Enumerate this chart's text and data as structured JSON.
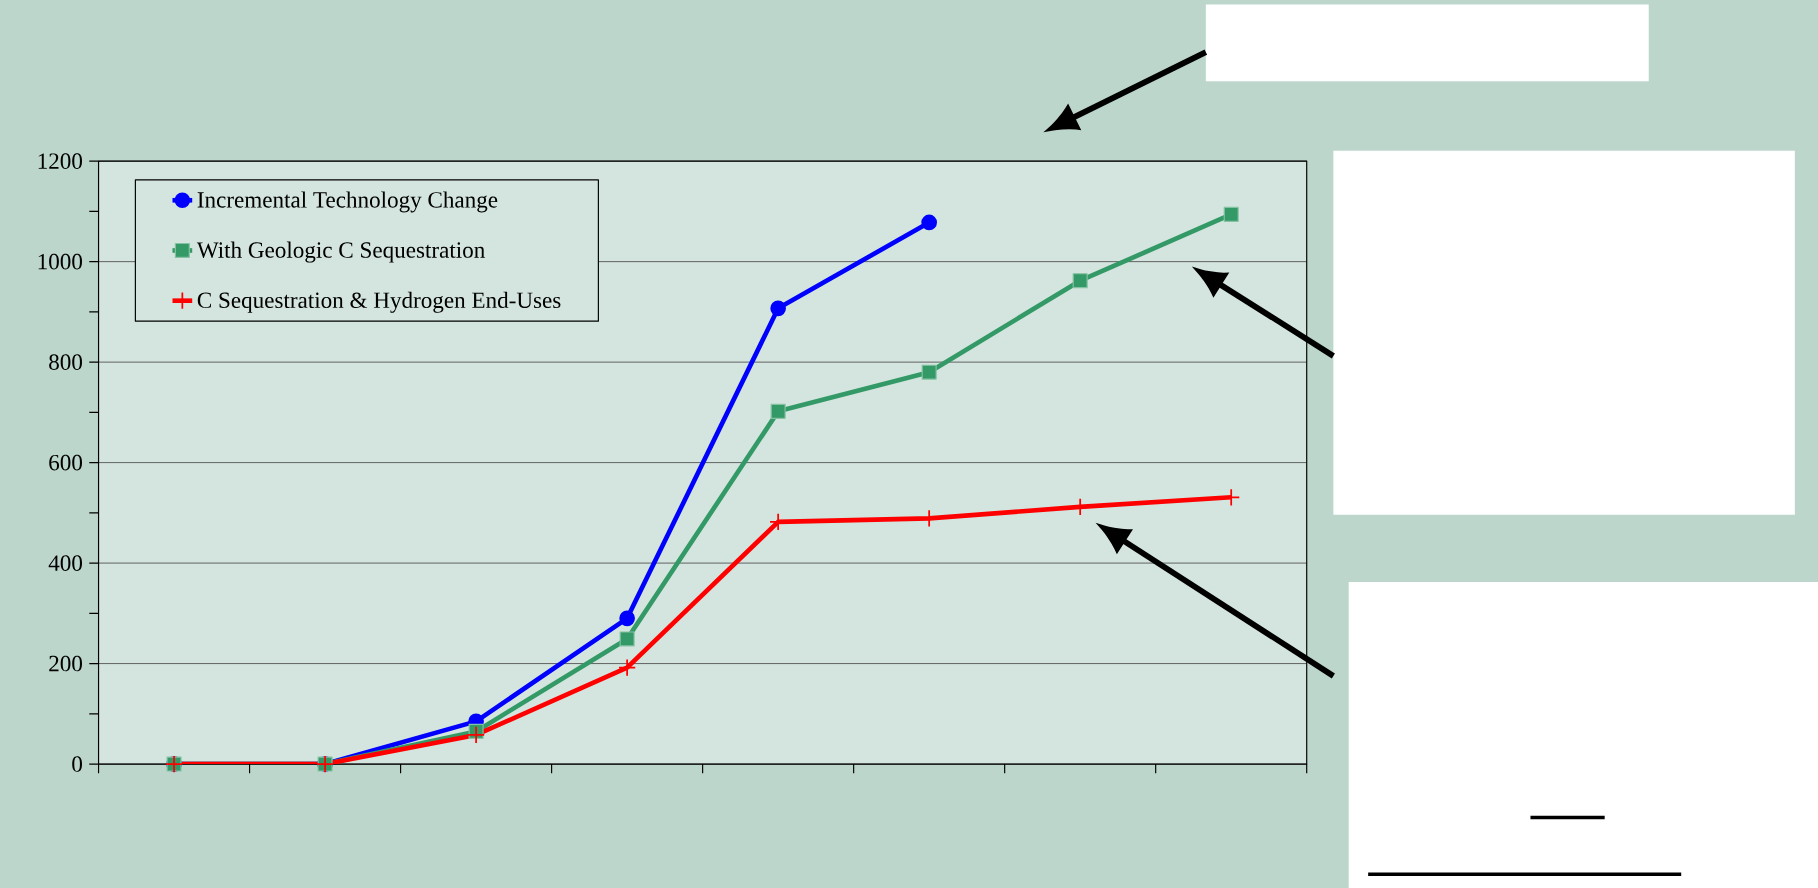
{
  "chart_data": {
    "type": "line",
    "categories": [
      null,
      null,
      null,
      null,
      null,
      null,
      null,
      null
    ],
    "series": [
      {
        "name": "Incremental Technology Change",
        "color": "#0000ff",
        "marker": "circle",
        "values": [
          0,
          0,
          85,
          290,
          907,
          1078,
          null,
          null
        ]
      },
      {
        "name": "With Geologic C Sequestration",
        "color": "#339966",
        "marker": "square",
        "values": [
          0,
          0,
          65,
          249,
          702,
          780,
          962,
          1094
        ]
      },
      {
        "name": "C Sequestration & Hydrogen End-Uses",
        "color": "#ff0000",
        "marker": "cross",
        "values": [
          0,
          0,
          58,
          192,
          482,
          489,
          512,
          531
        ]
      }
    ],
    "ylim": [
      0,
      1200
    ],
    "yticks": [
      0,
      {
        "value": 100,
        "label": null
      },
      200,
      {
        "value": 300,
        "label": null
      },
      400,
      {
        "value": 500,
        "label": null
      },
      600,
      {
        "value": 700,
        "label": null
      },
      800,
      {
        "value": 900,
        "label": null
      },
      1000,
      {
        "value": 1100,
        "label": null
      },
      1200
    ],
    "grid": "y",
    "legend": "top left"
  }
}
